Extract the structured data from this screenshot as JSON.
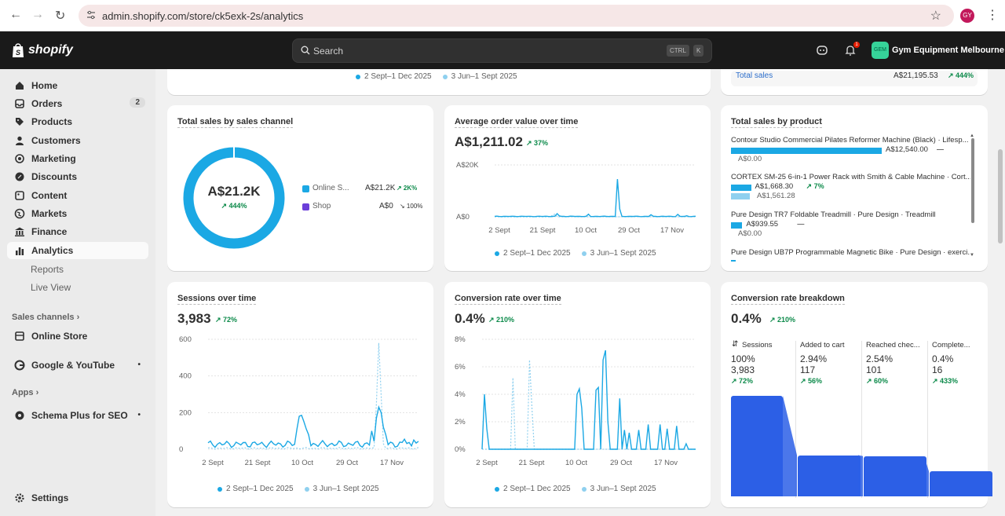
{
  "browser": {
    "url": "admin.shopify.com/store/ck5exk-2s/analytics",
    "profile_initials": "GY"
  },
  "topbar": {
    "brand": "shopify",
    "search_placeholder": "Search",
    "kbd1": "CTRL",
    "kbd2": "K",
    "notif_count": "1",
    "store_initials": "GEM",
    "store_name": "Gym Equipment Melbourne"
  },
  "sidebar": {
    "items": [
      {
        "label": "Home"
      },
      {
        "label": "Orders",
        "count": "2"
      },
      {
        "label": "Products"
      },
      {
        "label": "Customers"
      },
      {
        "label": "Marketing"
      },
      {
        "label": "Discounts"
      },
      {
        "label": "Content"
      },
      {
        "label": "Markets"
      },
      {
        "label": "Finance"
      },
      {
        "label": "Analytics"
      }
    ],
    "sub": [
      "Reports",
      "Live View"
    ],
    "sales_channels": "Sales channels",
    "online_store": "Online Store",
    "google": "Google & YouTube",
    "apps": "Apps",
    "schema": "Schema Plus for SEO",
    "settings": "Settings"
  },
  "top_partial": {
    "legend_current": "2 Sept–1 Dec 2025",
    "legend_prev": "3 Jun–1 Sept 2025",
    "total_label": "Total sales",
    "total_value": "A$21,195.53",
    "total_delta": "↗ 444%"
  },
  "channel": {
    "title": "Total sales by sales channel",
    "center_value": "A$21.2K",
    "center_delta": "↗ 444%",
    "rows": [
      {
        "name": "Online S...",
        "value": "A$21.2K",
        "delta": "↗ 2K%",
        "color": "#1ba8e4"
      },
      {
        "name": "Shop",
        "value": "A$0",
        "delta": "↘ 100%",
        "color": "#6b3fd9"
      }
    ]
  },
  "aov": {
    "title": "Average order value over time",
    "value": "A$1,211.02",
    "delta": "↗ 37%",
    "y_labels": [
      "A$20K",
      "A$0"
    ],
    "x_labels": [
      "2 Sept",
      "21 Sept",
      "10 Oct",
      "29 Oct",
      "17 Nov"
    ],
    "legend_current": "2 Sept–1 Dec 2025",
    "legend_prev": "3 Jun–1 Sept 2025"
  },
  "product": {
    "title": "Total sales by product",
    "items": [
      {
        "name": "Contour Studio Commercial Pilates Reformer Machine (Black) · Lifesp...",
        "current": "A$12,540.00",
        "prev": "A$0.00",
        "delta": "—",
        "cur_frac": 1.0,
        "prev_frac": 0
      },
      {
        "name": "CORTEX SM-25 6-in-1 Power Rack with Smith & Cable Machine · Cort...",
        "current": "A$1,668.30",
        "prev": "A$1,561.28",
        "delta": "↗ 7%",
        "cur_frac": 0.133,
        "prev_frac": 0.125
      },
      {
        "name": "Pure Design TR7 Foldable Treadmill · Pure Design · Treadmill",
        "current": "A$939.55",
        "prev": "A$0.00",
        "delta": "—",
        "cur_frac": 0.075,
        "prev_frac": 0
      },
      {
        "name": "Pure Design UB7P Programmable Magnetic Bike · Pure Design · exerci...",
        "current": "",
        "prev": "",
        "delta": "",
        "cur_frac": 0.03,
        "prev_frac": 0
      }
    ]
  },
  "sessions": {
    "title": "Sessions over time",
    "value": "3,983",
    "delta": "↗ 72%",
    "y_labels": [
      "600",
      "400",
      "200",
      "0"
    ],
    "x_labels": [
      "2 Sept",
      "21 Sept",
      "10 Oct",
      "29 Oct",
      "17 Nov"
    ],
    "legend_current": "2 Sept–1 Dec 2025",
    "legend_prev": "3 Jun–1 Sept 2025"
  },
  "conversion": {
    "title": "Conversion rate over time",
    "value": "0.4%",
    "delta": "↗ 210%",
    "y_labels": [
      "8%",
      "6%",
      "4%",
      "2%",
      "0%"
    ],
    "x_labels": [
      "2 Sept",
      "21 Sept",
      "10 Oct",
      "29 Oct",
      "17 Nov"
    ],
    "legend_current": "2 Sept–1 Dec 2025",
    "legend_prev": "3 Jun–1 Sept 2025"
  },
  "breakdown": {
    "title": "Conversion rate breakdown",
    "value": "0.4%",
    "delta": "↗ 210%",
    "steps": [
      {
        "label": "Sessions",
        "pct": "100%",
        "count": "3,983",
        "delta": "↗ 72%",
        "share": 1.0
      },
      {
        "label": "Added to cart",
        "pct": "2.94%",
        "count": "117",
        "delta": "↗ 56%",
        "share": 0.41
      },
      {
        "label": "Reached chec...",
        "pct": "2.54%",
        "count": "101",
        "delta": "↗ 60%",
        "share": 0.4
      },
      {
        "label": "Complete...",
        "pct": "0.4%",
        "count": "16",
        "delta": "↗ 433%",
        "share": 0.25
      }
    ]
  },
  "colors": {
    "current": "#1ba8e4",
    "previous": "#8fd0ef",
    "funnel": "#2c5fe6",
    "positive": "#0c8a4a"
  }
}
